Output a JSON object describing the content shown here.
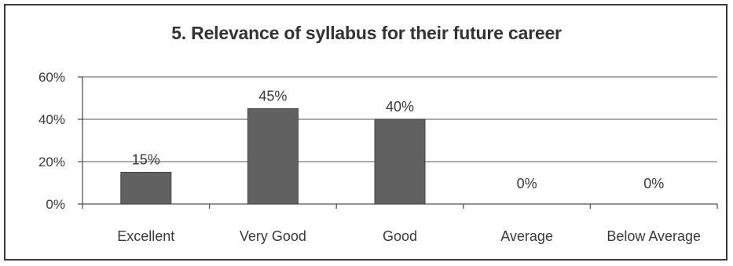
{
  "chart_data": {
    "type": "bar",
    "title": "5. Relevance of syllabus for their future career",
    "xlabel": "",
    "ylabel": "",
    "categories": [
      "Excellent",
      "Very Good",
      "Good",
      "Average",
      "Below Average"
    ],
    "values": [
      15,
      45,
      40,
      0,
      0
    ],
    "data_labels": [
      "15%",
      "45%",
      "40%",
      "0%",
      "0%"
    ],
    "yticks": [
      "0%",
      "20%",
      "40%",
      "60%"
    ],
    "ytick_values": [
      0,
      20,
      40,
      60
    ],
    "ylim": [
      0,
      60
    ],
    "grid": true,
    "legend": "none",
    "bar_color": "#616161"
  }
}
